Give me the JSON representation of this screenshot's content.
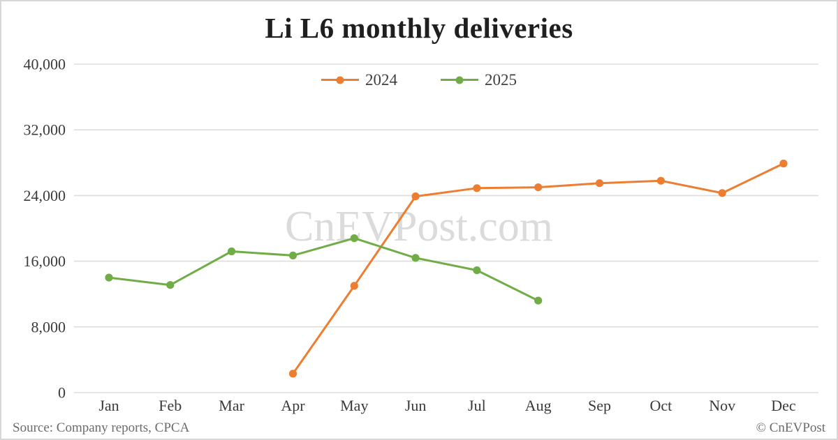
{
  "page": {
    "title": "Li L6 monthly deliveries",
    "watermark": "CnEVPost.com",
    "source_note": "Source: Company reports, CPCA",
    "copyright": "© CnEVPost"
  },
  "legend": {
    "items": [
      {
        "label": "2024",
        "color": "#ED7D31"
      },
      {
        "label": "2025",
        "color": "#70AD47"
      }
    ]
  },
  "chart_data": {
    "type": "line",
    "title": "Li L6 monthly deliveries",
    "categories": [
      "Jan",
      "Feb",
      "Mar",
      "Apr",
      "May",
      "Jun",
      "Jul",
      "Aug",
      "Sep",
      "Oct",
      "Nov",
      "Dec"
    ],
    "series": [
      {
        "name": "2024",
        "color": "#ED7D31",
        "values": [
          null,
          null,
          null,
          2300,
          13000,
          23900,
          24900,
          25000,
          25500,
          25800,
          24300,
          27900
        ]
      },
      {
        "name": "2025",
        "color": "#70AD47",
        "values": [
          14000,
          13100,
          17200,
          16700,
          18800,
          16400,
          14900,
          11200,
          null,
          null,
          null,
          null
        ]
      }
    ],
    "xlabel": "",
    "ylabel": "",
    "ylim": [
      0,
      40000
    ],
    "yticks": [
      0,
      8000,
      16000,
      24000,
      32000,
      40000
    ],
    "ytick_labels": [
      "0",
      "8,000",
      "16,000",
      "24,000",
      "32,000",
      "40,000"
    ],
    "grid": "horizontal",
    "gridline_color": "#dddddd",
    "legend_position": "top-center",
    "marker": "circle"
  }
}
